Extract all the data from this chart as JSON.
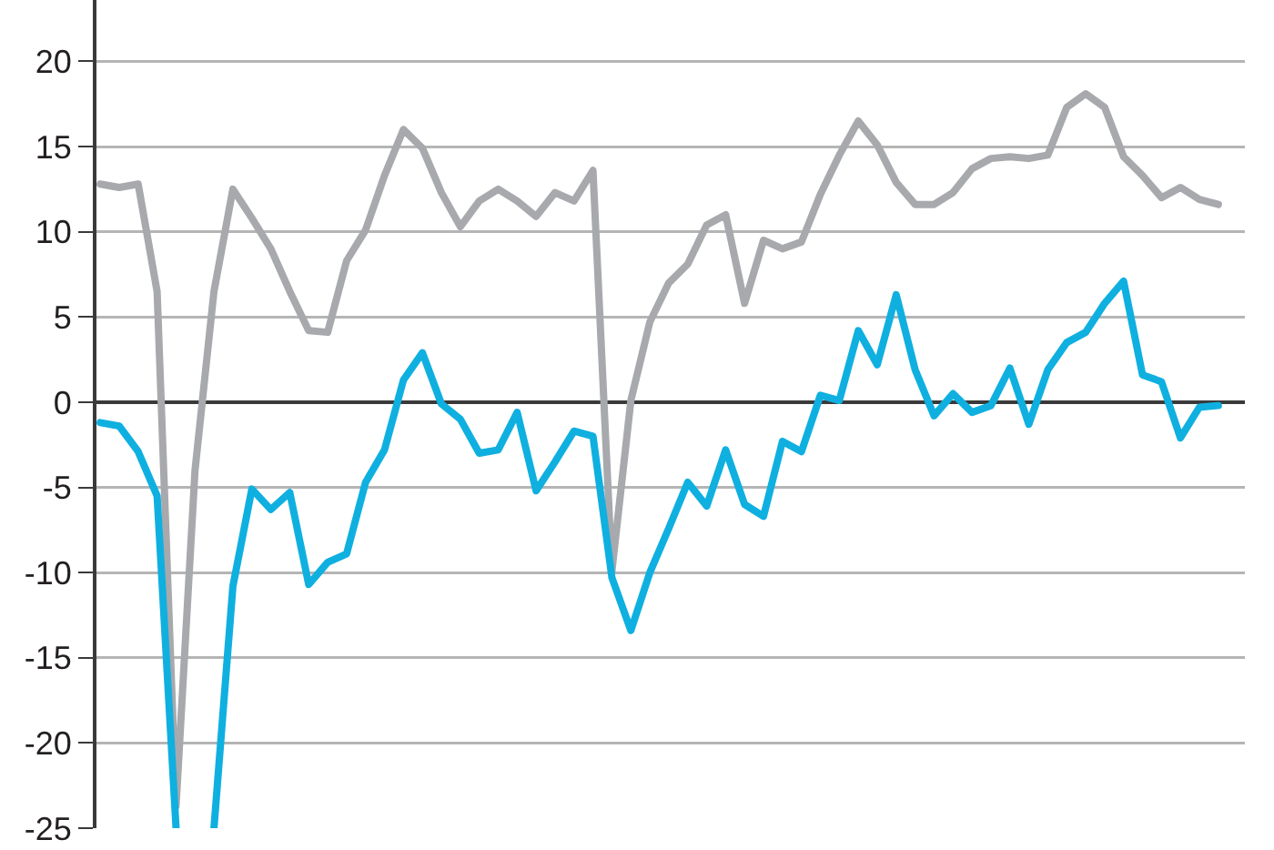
{
  "chart_data": {
    "type": "line",
    "categories": [
      null,
      null,
      null,
      null,
      null,
      null,
      null,
      null,
      null,
      null,
      null,
      null,
      null,
      null,
      null,
      null,
      null,
      null,
      null,
      null,
      null,
      null,
      null,
      null,
      null,
      null,
      null,
      null,
      null,
      null,
      null,
      null,
      null,
      null,
      null,
      null,
      null,
      null,
      null,
      null,
      null,
      null,
      null,
      null,
      null,
      null,
      null,
      null,
      null,
      null,
      null,
      null,
      null,
      null,
      null,
      null,
      null,
      null,
      null,
      null
    ],
    "series": [
      {
        "color": "#a7a9ac",
        "values": [
          12.8,
          12.6,
          12.8,
          6.5,
          -23.7,
          -4,
          6.5,
          12.5,
          10.8,
          9.0,
          6.5,
          4.2,
          4.1,
          8.3,
          10.1,
          13.3,
          16.0,
          14.9,
          12.3,
          10.3,
          11.8,
          12.5,
          11.8,
          10.9,
          12.3,
          11.8,
          13.6,
          -9.9,
          0.1,
          4.7,
          7.0,
          8.1,
          10.4,
          11.0,
          5.8,
          9.5,
          9.0,
          9.4,
          12.2,
          14.5,
          16.5,
          15.1,
          12.9,
          11.6,
          11.6,
          12.3,
          13.7,
          14.3,
          14.4,
          14.3,
          14.5,
          17.3,
          18.1,
          17.3,
          14.4,
          13.3,
          12.0,
          12.6,
          11.9,
          11.6
        ]
      },
      {
        "color": "#0fb0e0",
        "values": [
          -1.2,
          -1.4,
          -2.9,
          -5.5,
          -25,
          null,
          -25,
          -10.8,
          -5.1,
          -6.3,
          -5.3,
          -10.7,
          -9.4,
          -8.9,
          -4.7,
          -2.8,
          1.3,
          2.9,
          -0.1,
          -1.0,
          -3.0,
          -2.8,
          -0.6,
          -5.2,
          -3.5,
          -1.7,
          -2.0,
          -10.3,
          -13.4,
          -10.0,
          -7.4,
          -4.7,
          -6.1,
          -2.8,
          -6.0,
          -6.7,
          -2.3,
          -2.9,
          0.4,
          0.1,
          4.2,
          2.2,
          6.3,
          1.9,
          -0.8,
          0.5,
          -0.6,
          -0.2,
          2.0,
          -1.3,
          1.9,
          3.5,
          4.1,
          5.8,
          7.1,
          1.6,
          1.2,
          -2.1,
          -0.3,
          -0.2
        ]
      }
    ],
    "ylim": [
      -25,
      23.6
    ],
    "yticks": [
      -25,
      -20,
      -15,
      -10,
      -5,
      0,
      5,
      10,
      15,
      20
    ],
    "grid": "y",
    "marker": "none",
    "line_style": "solid"
  }
}
